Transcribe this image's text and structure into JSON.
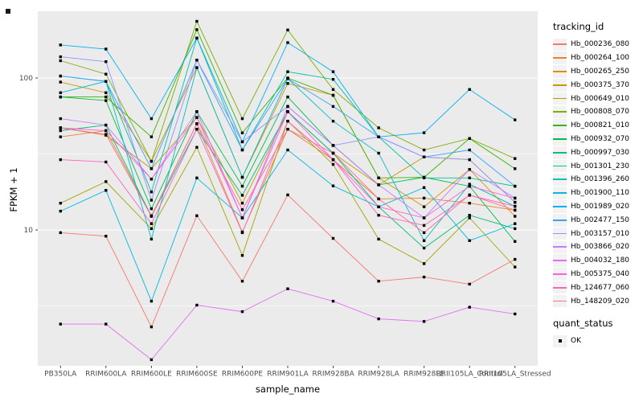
{
  "figure": {
    "background": "#FFFFFF",
    "panel_bg": "#EBEBEB",
    "grid_color": "#FFFFFF",
    "tick_mark_color": "#333333",
    "axis_text_color": "#4D4D4D",
    "legend_key_bg": "#F2F2F2"
  },
  "chart_data": {
    "type": "line",
    "title": "",
    "xlabel": "sample_name",
    "ylabel": "FPKM + 1",
    "y_scale": "log10",
    "ylim": [
      1.28,
      275
    ],
    "grid": true,
    "legend_position": "right",
    "y_ticks": [
      {
        "label": "100",
        "value": 100
      },
      {
        "label": "10",
        "value": 10
      }
    ],
    "y_minor_values": [
      31.6,
      3.16
    ],
    "categories": [
      "PB350LA",
      "RRIM600LA",
      "RRIM600LE",
      "RRIM600SE",
      "RRIM600PE",
      "RRIM901LA",
      "RRIM928BA",
      "RRIM928LA",
      "RRIM928LE",
      "RRII105LA_Control",
      "RRII105LA_Stressed"
    ],
    "point_shape": "filled-square",
    "point_color": "#000000",
    "legend_color_title": "tracking_id",
    "legend_shape_title": "quant_status",
    "legend_shape_items": [
      "OK"
    ],
    "series": [
      {
        "name": "Hb_000236_080",
        "color": "#F8766D",
        "values": [
          9.6,
          9.1,
          2.3,
          12.4,
          4.6,
          17,
          8.8,
          4.6,
          4.9,
          4.4,
          6.4
        ]
      },
      {
        "name": "Hb_000264_100",
        "color": "#EA8331",
        "values": [
          41,
          45,
          12.4,
          50,
          9.7,
          46,
          29,
          16,
          16.2,
          15,
          13.5
        ]
      },
      {
        "name": "Hb_000265_250",
        "color": "#D89000",
        "values": [
          94,
          80,
          28.3,
          117,
          22.2,
          92,
          77,
          22,
          14.2,
          25,
          12.3
        ]
      },
      {
        "name": "Hb_000375_370",
        "color": "#C09B00",
        "values": [
          47,
          42,
          25.3,
          55,
          15,
          60,
          32,
          19.8,
          30.2,
          29,
          15.2
        ]
      },
      {
        "name": "Hb_000649_010",
        "color": "#A3A500",
        "values": [
          15,
          20.8,
          10.2,
          35,
          6.8,
          52,
          27,
          8.7,
          6,
          12,
          5.7
        ]
      },
      {
        "name": "Hb_000808_070",
        "color": "#7CAE00",
        "values": [
          130,
          106,
          28.3,
          236,
          54,
          207,
          84,
          47,
          33.6,
          40,
          29.5
        ]
      },
      {
        "name": "Hb_000821_010",
        "color": "#39B600",
        "values": [
          75,
          75,
          41,
          208,
          43.5,
          100,
          77,
          22,
          22.2,
          40,
          25.3
        ]
      },
      {
        "name": "Hb_000932_070",
        "color": "#00BB4E",
        "values": [
          75,
          71,
          13.8,
          60,
          19.4,
          75,
          36,
          19.8,
          22.2,
          19.4,
          8.4
        ]
      },
      {
        "name": "Hb_000997_030",
        "color": "#00BF7D",
        "values": [
          45,
          49,
          12.3,
          46,
          16.9,
          60,
          32,
          14.2,
          7.6,
          12.5,
          10.2
        ]
      },
      {
        "name": "Hb_001301_230",
        "color": "#00C1A3",
        "values": [
          103,
          95,
          17.8,
          183,
          33.6,
          110,
          98,
          41,
          22,
          22,
          19.4
        ]
      },
      {
        "name": "Hb_001396_260",
        "color": "#00BFC4",
        "values": [
          80,
          95,
          8.7,
          117,
          22.2,
          99,
          52,
          32,
          8.5,
          20,
          14.3
        ]
      },
      {
        "name": "Hb_001900_110",
        "color": "#00BAE0",
        "values": [
          13.3,
          18.2,
          3.4,
          22,
          12,
          33.6,
          19.5,
          14.2,
          19,
          8.5,
          11
        ]
      },
      {
        "name": "Hb_001989_020",
        "color": "#00B0F6",
        "values": [
          165,
          155,
          54,
          183,
          38,
          171,
          110,
          41,
          43.6,
          84,
          53
        ]
      },
      {
        "name": "Hb_002477_150",
        "color": "#35A2FF",
        "values": [
          103,
          95,
          25.3,
          131,
          33.6,
          99,
          65,
          41,
          30.2,
          33.6,
          19.4
        ]
      },
      {
        "name": "Hb_003157_010",
        "color": "#9590FF",
        "values": [
          138,
          128,
          15.7,
          131,
          38,
          65,
          36,
          41,
          30.2,
          29,
          15.2
        ]
      },
      {
        "name": "Hb_003866_020",
        "color": "#C77CFF",
        "values": [
          54,
          49,
          21.6,
          60,
          12,
          65,
          36,
          19.8,
          12,
          25,
          16.2
        ]
      },
      {
        "name": "Hb_004032_180",
        "color": "#E76BF3",
        "values": [
          2.4,
          2.4,
          1.4,
          3.2,
          2.9,
          4.1,
          3.4,
          2.6,
          2.5,
          3.1,
          2.8
        ]
      },
      {
        "name": "Hb_005375_040",
        "color": "#FA62DB",
        "values": [
          47,
          45,
          21.6,
          55,
          12,
          60,
          29,
          14.2,
          12,
          19.4,
          16.2
        ]
      },
      {
        "name": "Hb_124677_060",
        "color": "#FF62BC",
        "values": [
          29,
          28,
          11,
          46,
          9.6,
          52,
          29,
          12.5,
          10.7,
          16.9,
          14.3
        ]
      },
      {
        "name": "Hb_148209_020",
        "color": "#FF6A98",
        "values": [
          47,
          42.5,
          12.3,
          50,
          13.6,
          46,
          32,
          16,
          9.6,
          17,
          13.5
        ]
      }
    ]
  }
}
